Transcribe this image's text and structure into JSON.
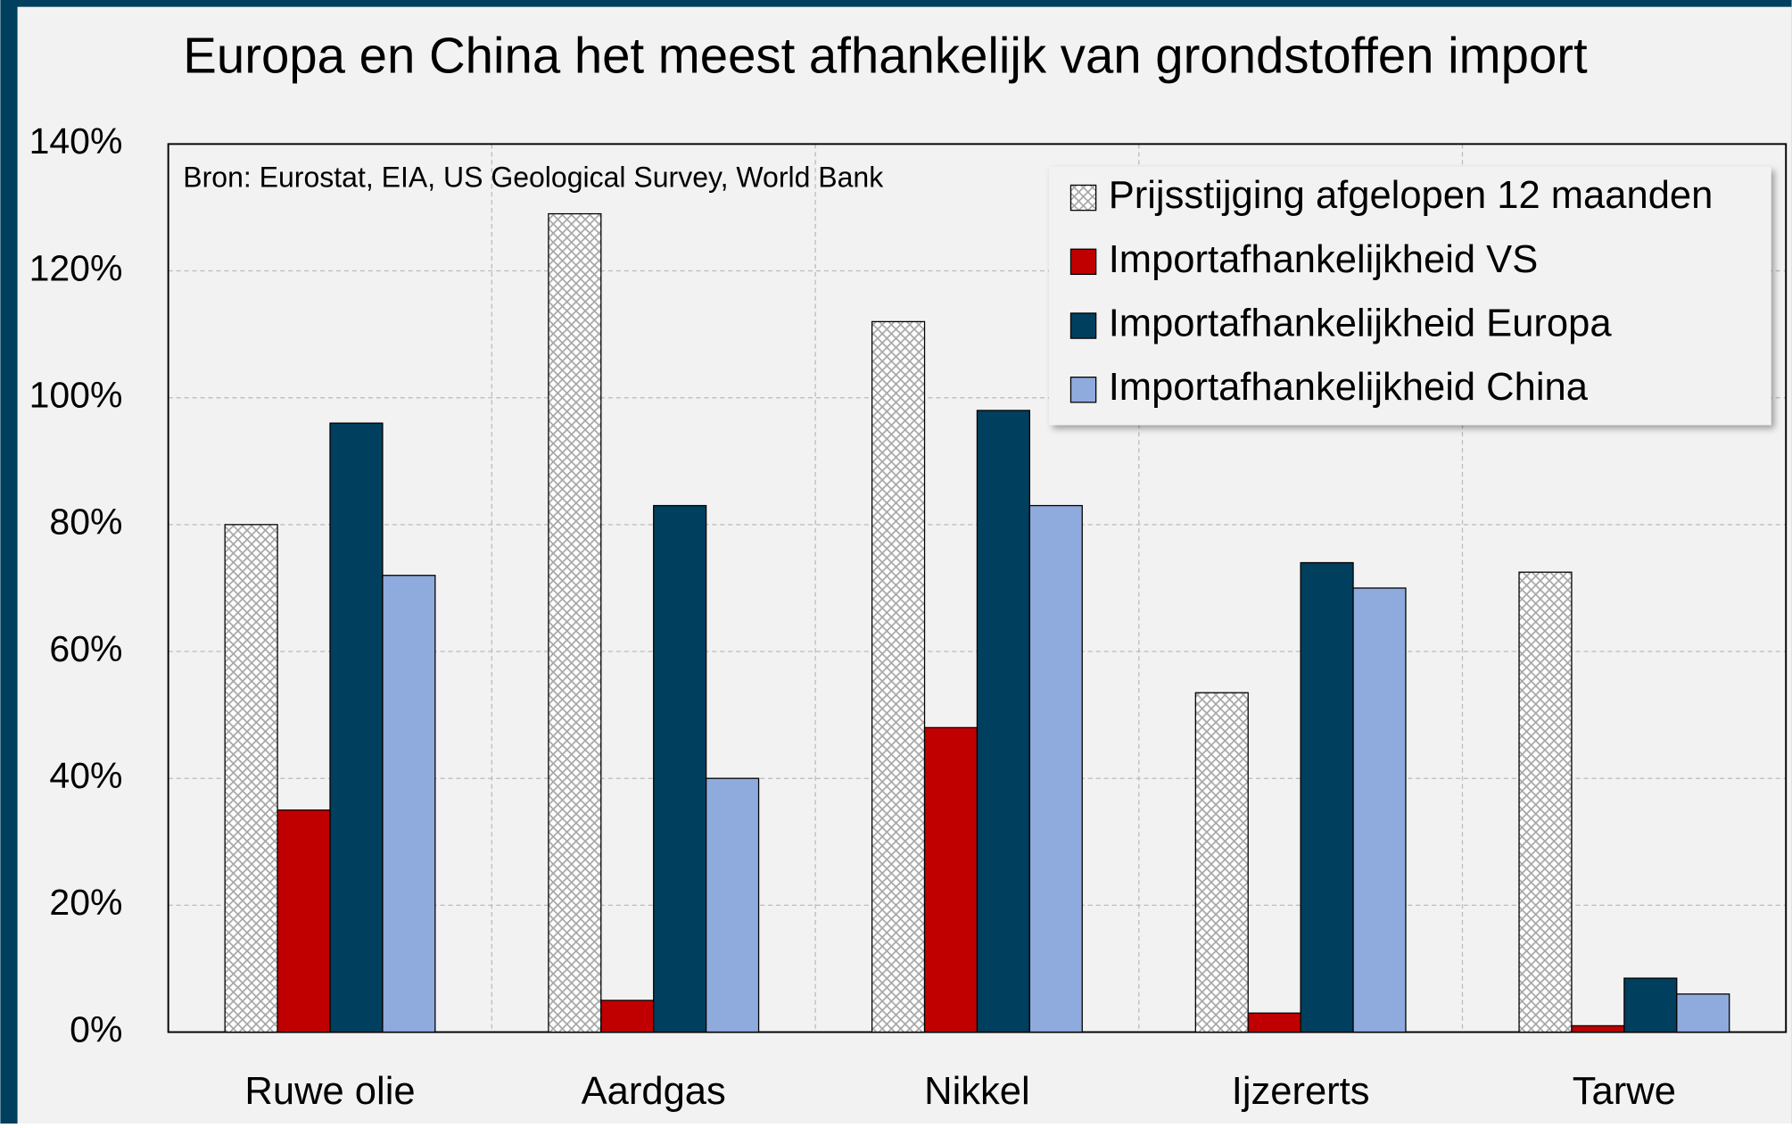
{
  "chart_data": {
    "type": "bar",
    "title": "Europa en China het meest afhankelijk van grondstoffen import",
    "annotation": "Bron: Eurostat, EIA, US Geological Survey, World Bank",
    "categories": [
      "Ruwe olie",
      "Aardgas",
      "Nikkel",
      "Ijzererts",
      "Tarwe"
    ],
    "series": [
      {
        "name": "Prijsstijging afgelopen 12 maanden",
        "color": "#a6a6a6",
        "pattern": "crosshatch",
        "values": [
          80,
          129,
          112,
          53.5,
          72.5
        ]
      },
      {
        "name": "Importafhankelijkheid VS",
        "color": "#c00000",
        "values": [
          35,
          5,
          48,
          3,
          1
        ]
      },
      {
        "name": "Importafhankelijkheid Europa",
        "color": "#003f5e",
        "values": [
          96,
          83,
          98,
          74,
          8.5
        ]
      },
      {
        "name": "Importafhankelijkheid China",
        "color": "#8faadc",
        "values": [
          72,
          40,
          83,
          70,
          6
        ]
      }
    ],
    "ylim": [
      0,
      140
    ],
    "yticks": [
      {
        "value": 0,
        "label": "0%"
      },
      {
        "value": 20,
        "label": "20%"
      },
      {
        "value": 40,
        "label": "40%"
      },
      {
        "value": 60,
        "label": "60%"
      },
      {
        "value": 80,
        "label": "80%"
      },
      {
        "value": 100,
        "label": "100%"
      },
      {
        "value": 120,
        "label": "120%"
      },
      {
        "value": 140,
        "label": "140%"
      }
    ],
    "grid": true,
    "legend": "upper right"
  }
}
